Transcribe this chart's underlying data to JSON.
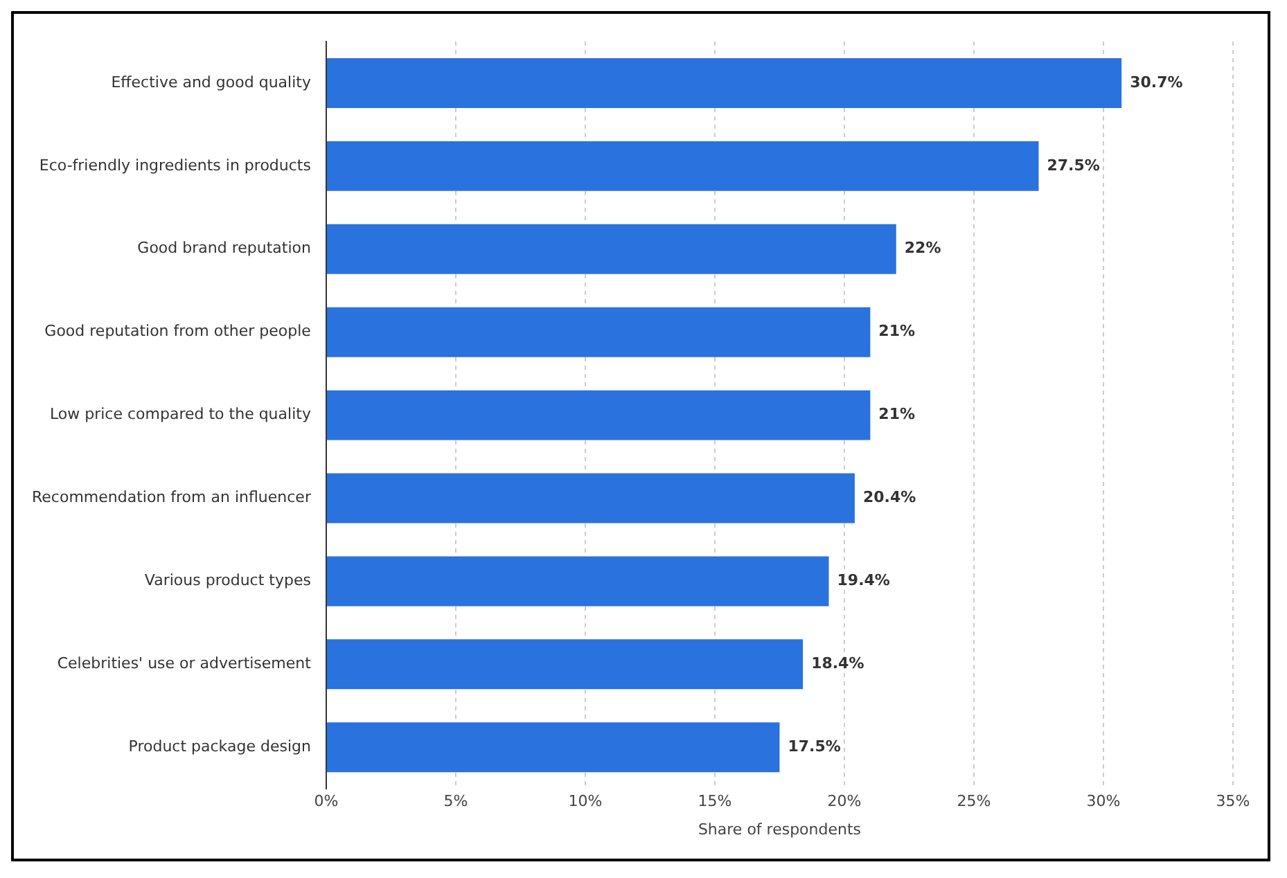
{
  "chart_data": {
    "type": "bar",
    "orientation": "horizontal",
    "xlabel": "Share of respondents",
    "categories": [
      "Effective and good quality",
      "Eco-friendly ingredients in products",
      "Good brand reputation",
      "Good reputation from other people",
      "Low price compared to the quality",
      "Recommendation from an influencer",
      "Various product types",
      "Celebrities' use or advertisement",
      "Product package design"
    ],
    "values": [
      30.7,
      27.5,
      22,
      21,
      21,
      20.4,
      19.4,
      18.4,
      17.5
    ],
    "value_labels": [
      "30.7%",
      "27.5%",
      "22%",
      "21%",
      "21%",
      "20.4%",
      "19.4%",
      "18.4%",
      "17.5%"
    ],
    "color": "#2a72dd",
    "xlim": [
      0,
      35
    ],
    "xticks": [
      {
        "value": 0,
        "label": "0%"
      },
      {
        "value": 5,
        "label": "5%"
      },
      {
        "value": 10,
        "label": "10%"
      },
      {
        "value": 15,
        "label": "15%"
      },
      {
        "value": 20,
        "label": "20%"
      },
      {
        "value": 25,
        "label": "25%"
      },
      {
        "value": 30,
        "label": "30%"
      },
      {
        "value": 35,
        "label": "35%"
      }
    ],
    "grid": "x",
    "legend": false
  }
}
